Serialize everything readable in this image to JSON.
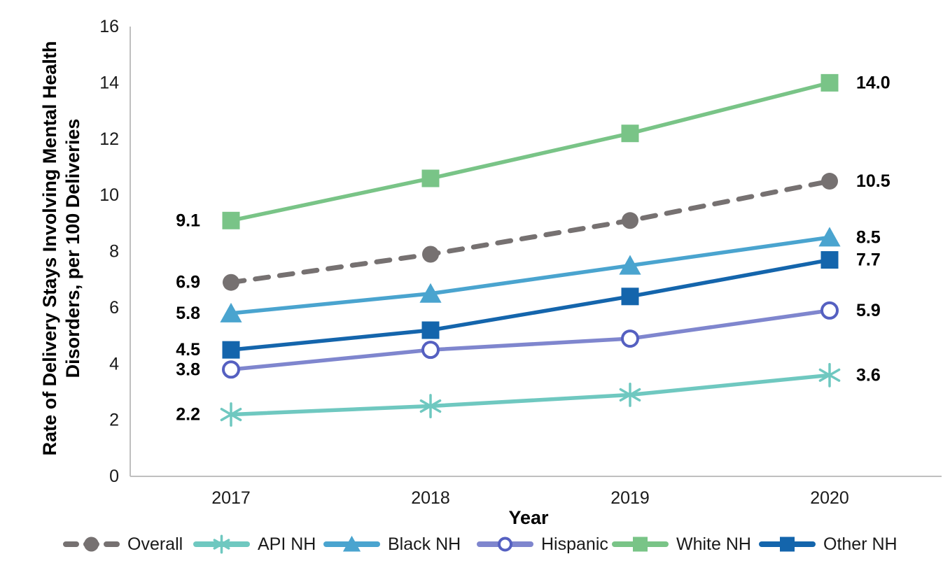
{
  "chart_data": {
    "type": "line",
    "title": "",
    "xlabel": "Year",
    "ylabel": "Rate of Delivery Stays Involving Mental Health Disorders, per 100 Deliveries",
    "ylabel_lines": [
      "Rate of Delivery Stays Involving Mental Health",
      "Disorders, per 100 Deliveries"
    ],
    "categories": [
      "2017",
      "2018",
      "2019",
      "2020"
    ],
    "ylim": [
      0,
      16
    ],
    "ytick_step": 2,
    "yticks": [
      "0",
      "2",
      "4",
      "6",
      "8",
      "10",
      "12",
      "14",
      "16"
    ],
    "grid": false,
    "legend_position": "bottom",
    "axis_color": "#BFBFBF",
    "series": [
      {
        "name": "Overall",
        "color": "#767171",
        "marker": "circle",
        "line_style": "dashed",
        "values": [
          6.9,
          7.9,
          9.1,
          10.5
        ],
        "first_point_label": "6.9",
        "last_point_label": "10.5"
      },
      {
        "name": "API NH",
        "color": "#6FC8C0",
        "marker": "asterisk",
        "line_style": "solid",
        "values": [
          2.2,
          2.5,
          2.9,
          3.6
        ],
        "first_point_label": "2.2",
        "last_point_label": "3.6"
      },
      {
        "name": "Black NH",
        "color": "#4AA4CF",
        "marker": "triangle",
        "line_style": "solid",
        "values": [
          5.8,
          6.5,
          7.5,
          8.5
        ],
        "first_point_label": "5.8",
        "last_point_label": "8.5"
      },
      {
        "name": "Hispanic",
        "color": "#7F86CE",
        "marker": "open-circle",
        "marker_color": "#5560C1",
        "line_style": "solid",
        "values": [
          3.8,
          4.5,
          4.9,
          5.9
        ],
        "first_point_label": "3.8",
        "last_point_label": "5.9"
      },
      {
        "name": "White NH",
        "color": "#79C487",
        "marker": "square",
        "line_style": "solid",
        "values": [
          9.1,
          10.6,
          12.2,
          14.0
        ],
        "first_point_label": "9.1",
        "last_point_label": "14.0"
      },
      {
        "name": "Other NH",
        "color": "#1465AC",
        "marker": "square",
        "line_style": "solid",
        "values": [
          4.5,
          5.2,
          6.4,
          7.7
        ],
        "first_point_label": "4.5",
        "last_point_label": "7.7"
      }
    ]
  }
}
